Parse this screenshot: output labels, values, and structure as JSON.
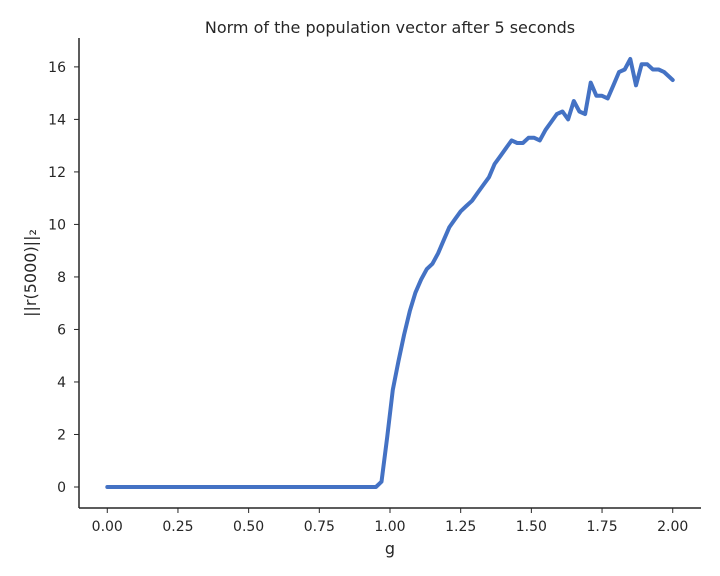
{
  "chart_data": {
    "type": "line",
    "title": "Norm of the population vector after 5 seconds",
    "xlabel": "g",
    "ylabel": "||r(5000)||₂",
    "xlim": [
      -0.1,
      2.1
    ],
    "ylim": [
      -0.8,
      17.1
    ],
    "xticks": [
      0.0,
      0.25,
      0.5,
      0.75,
      1.0,
      1.25,
      1.5,
      1.75,
      2.0
    ],
    "xtick_labels": [
      "0.00",
      "0.25",
      "0.50",
      "0.75",
      "1.00",
      "1.25",
      "1.50",
      "1.75",
      "2.00"
    ],
    "yticks": [
      0,
      2,
      4,
      6,
      8,
      10,
      12,
      14,
      16
    ],
    "ytick_labels": [
      "0",
      "2",
      "4",
      "6",
      "8",
      "10",
      "12",
      "14",
      "16"
    ],
    "grid": false,
    "color": "#4472C4",
    "series": [
      {
        "x": [
          0.0,
          0.1,
          0.2,
          0.3,
          0.4,
          0.5,
          0.6,
          0.7,
          0.8,
          0.9,
          0.95,
          0.97,
          0.99,
          1.01,
          1.03,
          1.05,
          1.07,
          1.09,
          1.11,
          1.13,
          1.15,
          1.17,
          1.19,
          1.21,
          1.23,
          1.25,
          1.27,
          1.29,
          1.31,
          1.33,
          1.35,
          1.37,
          1.39,
          1.41,
          1.43,
          1.45,
          1.47,
          1.49,
          1.51,
          1.53,
          1.55,
          1.57,
          1.59,
          1.61,
          1.63,
          1.65,
          1.67,
          1.69,
          1.71,
          1.73,
          1.75,
          1.77,
          1.79,
          1.81,
          1.83,
          1.85,
          1.87,
          1.89,
          1.91,
          1.93,
          1.95,
          1.97,
          1.99,
          2.0
        ],
        "y": [
          0.0,
          0.0,
          0.0,
          0.0,
          0.0,
          0.0,
          0.0,
          0.0,
          0.0,
          0.0,
          0.0,
          0.2,
          1.9,
          3.7,
          4.8,
          5.8,
          6.7,
          7.4,
          7.9,
          8.3,
          8.5,
          8.9,
          9.4,
          9.9,
          10.2,
          10.5,
          10.7,
          10.9,
          11.2,
          11.5,
          11.8,
          12.3,
          12.6,
          12.9,
          13.2,
          13.1,
          13.1,
          13.3,
          13.3,
          13.2,
          13.6,
          13.9,
          14.2,
          14.3,
          14.0,
          14.7,
          14.3,
          14.2,
          15.4,
          14.9,
          14.9,
          14.8,
          15.3,
          15.8,
          15.9,
          16.3,
          15.3,
          16.1,
          16.1,
          15.9,
          15.9,
          15.8,
          15.6,
          15.5
        ]
      }
    ]
  }
}
